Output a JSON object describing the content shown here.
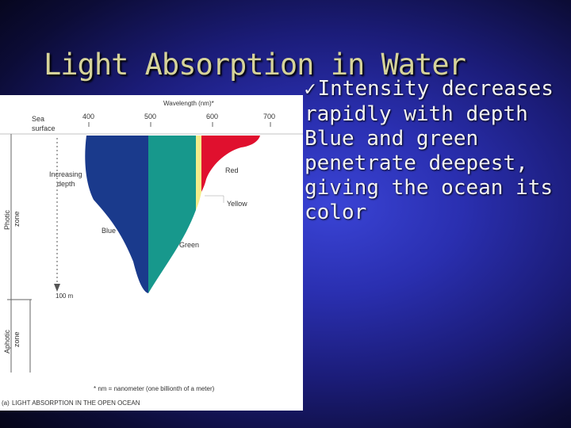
{
  "slide": {
    "title": "Light Absorption in Water",
    "bullet_lines": [
      "Intensity decreases",
      "rapidly with depth",
      "Blue and green",
      "penetrate deepest,",
      "giving the ocean its",
      "color"
    ]
  },
  "figure": {
    "wavelength_axis_label": "Wavelength (nm)*",
    "wavelength_ticks": [
      "400",
      "500",
      "600",
      "700"
    ],
    "sea_surface_label": [
      "Sea",
      "surface"
    ],
    "increasing_depth_label": [
      "Increasing",
      "depth"
    ],
    "depth_marker": "100 m",
    "zones": {
      "photic": [
        "Photic",
        "zone"
      ],
      "aphotic": [
        "Aphotic",
        "zone"
      ]
    },
    "bands": {
      "red": {
        "label": "Red",
        "color": "#e0102e"
      },
      "yellow": {
        "label": "Yellow",
        "color": "#f3ec8a"
      },
      "green": {
        "label": "Green",
        "color": "#17988c"
      },
      "blue": {
        "label": "Blue",
        "color": "#1a3a8c"
      }
    },
    "footnote": "* nm = nanometer (one billionth of a meter)",
    "caption_letter": "(a)",
    "caption": "LIGHT ABSORPTION IN THE OPEN OCEAN"
  }
}
